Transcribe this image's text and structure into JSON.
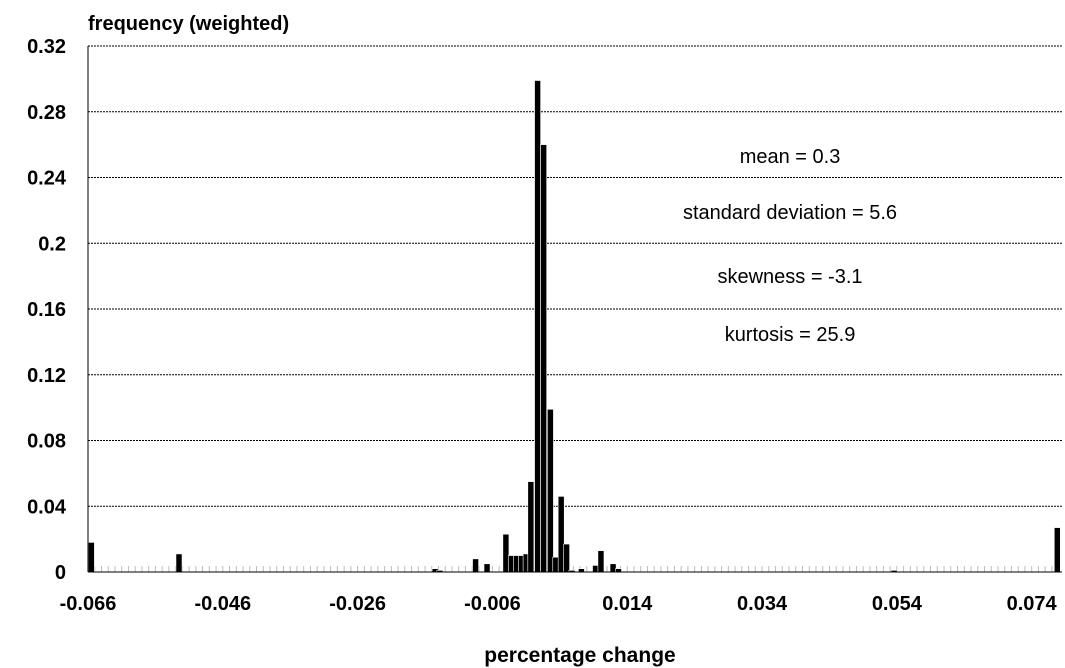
{
  "chart_data": {
    "type": "bar",
    "title": "",
    "ylabel": "frequency (weighted)",
    "xlabel": "percentage change",
    "xlim": [
      -0.066,
      0.0785
    ],
    "ylim": [
      0,
      0.32
    ],
    "grid": true,
    "bar_width": 0.0009,
    "y_ticks": [
      {
        "value": 0,
        "label": "0"
      },
      {
        "value": 0.04,
        "label": "0.04"
      },
      {
        "value": 0.08,
        "label": "0.08"
      },
      {
        "value": 0.12,
        "label": "0.12"
      },
      {
        "value": 0.16,
        "label": "0.16"
      },
      {
        "value": 0.2,
        "label": "0.2"
      },
      {
        "value": 0.24,
        "label": "0.24"
      },
      {
        "value": 0.28,
        "label": "0.28"
      },
      {
        "value": 0.32,
        "label": "0.32"
      }
    ],
    "x_ticks": [
      {
        "value": -0.066,
        "label": "-0.066"
      },
      {
        "value": -0.046,
        "label": "-0.046"
      },
      {
        "value": -0.026,
        "label": "-0.026"
      },
      {
        "value": -0.006,
        "label": "-0.006"
      },
      {
        "value": 0.014,
        "label": "0.014"
      },
      {
        "value": 0.034,
        "label": "0.034"
      },
      {
        "value": 0.054,
        "label": "0.054"
      },
      {
        "value": 0.074,
        "label": "0.074"
      }
    ],
    "annotations": [
      {
        "text": "mean = 0.3"
      },
      {
        "text": "standard deviation = 5.6"
      },
      {
        "text": "skewness = -3.1"
      },
      {
        "text": "kurtosis = 25.9"
      }
    ],
    "bars": [
      {
        "x": -0.0655,
        "y": 0.018
      },
      {
        "x": -0.0525,
        "y": 0.011
      },
      {
        "x": -0.0145,
        "y": 0.002
      },
      {
        "x": -0.0138,
        "y": 0.001
      },
      {
        "x": -0.0085,
        "y": 0.008
      },
      {
        "x": -0.0068,
        "y": 0.005
      },
      {
        "x": -0.004,
        "y": 0.023
      },
      {
        "x": -0.0032,
        "y": 0.01
      },
      {
        "x": -0.0024,
        "y": 0.01
      },
      {
        "x": -0.0017,
        "y": 0.01
      },
      {
        "x": -0.001,
        "y": 0.011
      },
      {
        "x": -0.0003,
        "y": 0.055
      },
      {
        "x": 0.0007,
        "y": 0.299
      },
      {
        "x": 0.0016,
        "y": 0.26
      },
      {
        "x": 0.0026,
        "y": 0.099
      },
      {
        "x": 0.0034,
        "y": 0.009
      },
      {
        "x": 0.0042,
        "y": 0.046
      },
      {
        "x": 0.005,
        "y": 0.017
      },
      {
        "x": 0.0058,
        "y": 0.001
      },
      {
        "x": 0.0072,
        "y": 0.002
      },
      {
        "x": 0.0093,
        "y": 0.004
      },
      {
        "x": 0.0101,
        "y": 0.013
      },
      {
        "x": 0.0119,
        "y": 0.005
      },
      {
        "x": 0.0127,
        "y": 0.002
      },
      {
        "x": 0.0536,
        "y": 0.001
      },
      {
        "x": 0.0778,
        "y": 0.027
      }
    ]
  }
}
